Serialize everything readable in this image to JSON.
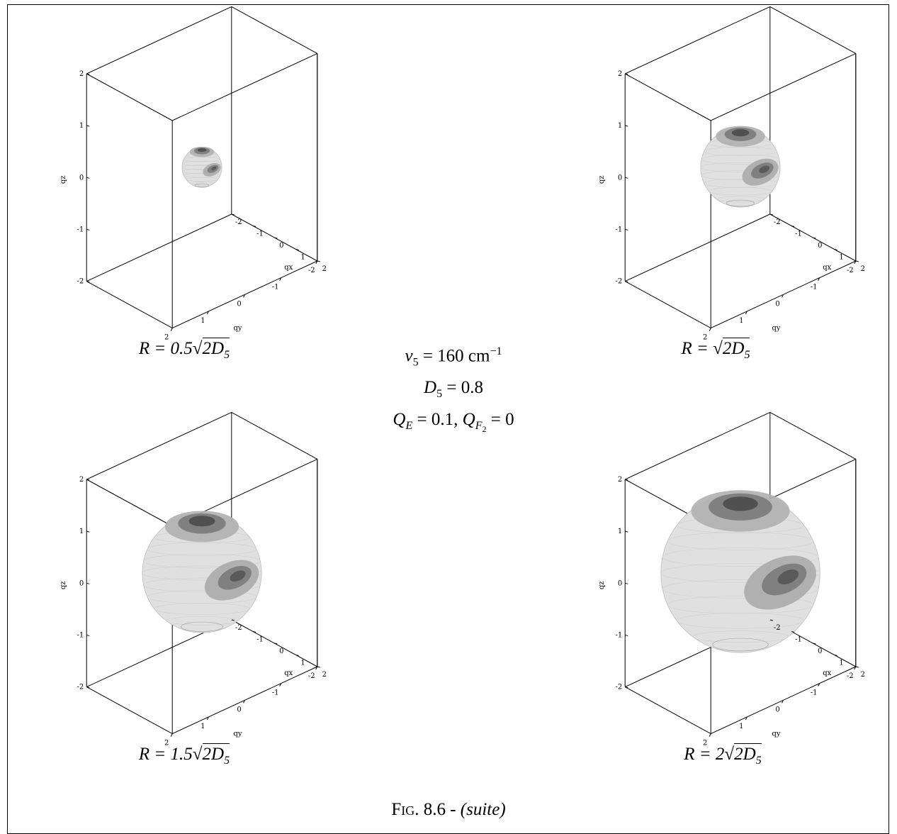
{
  "panels": [
    {
      "caption_prefix": "R = 0.5",
      "caption_sqrt": "2D",
      "caption_sub": "5",
      "radius": 0.5,
      "axes": {
        "qx_label": "qx",
        "qy_label": "qy",
        "qz_label": "qz",
        "ticks": [
          "-2",
          "-1",
          "0",
          "1",
          "2"
        ]
      }
    },
    {
      "caption_prefix": "R = ",
      "caption_sqrt": "2D",
      "caption_sub": "5",
      "radius": 1.0,
      "axes": {
        "qx_label": "qx",
        "qy_label": "qy",
        "qz_label": "qz",
        "ticks": [
          "-2",
          "-1",
          "0",
          "1",
          "2"
        ]
      }
    },
    {
      "caption_prefix": "R = 1.5",
      "caption_sqrt": "2D",
      "caption_sub": "5",
      "radius": 1.5,
      "axes": {
        "qx_label": "qx",
        "qy_label": "qy",
        "qz_label": "qz",
        "ticks": [
          "-2",
          "-1",
          "0",
          "1",
          "2"
        ]
      }
    },
    {
      "caption_prefix": "R = 2",
      "caption_sqrt": "2D",
      "caption_sub": "5",
      "radius": 2.0,
      "axes": {
        "qx_label": "qx",
        "qy_label": "qy",
        "qz_label": "qz",
        "ticks": [
          "-2",
          "-1",
          "0",
          "1",
          "2"
        ]
      }
    }
  ],
  "parameters": {
    "nu_line": "ν",
    "nu_sub": "5",
    "nu_value": " = 160 cm",
    "nu_exp": "−1",
    "d_line": "D",
    "d_sub": "5",
    "d_value": " = 0.8",
    "qe_line": "Q",
    "qe_sub": "E",
    "qe_value": " = 0.1,  ",
    "qf_line": "Q",
    "qf_sub": "F",
    "qf_subsub": "2",
    "qf_value": " = 0"
  },
  "figure_caption": {
    "label": "Fig. 8.6 - ",
    "suffix": "(suite)"
  },
  "colors": {
    "sphere_light": "#e0e0e0",
    "shade_mid": "#b0b0b0",
    "shade_dark": "#808080",
    "shade_darkest": "#505050",
    "line": "#000000"
  }
}
